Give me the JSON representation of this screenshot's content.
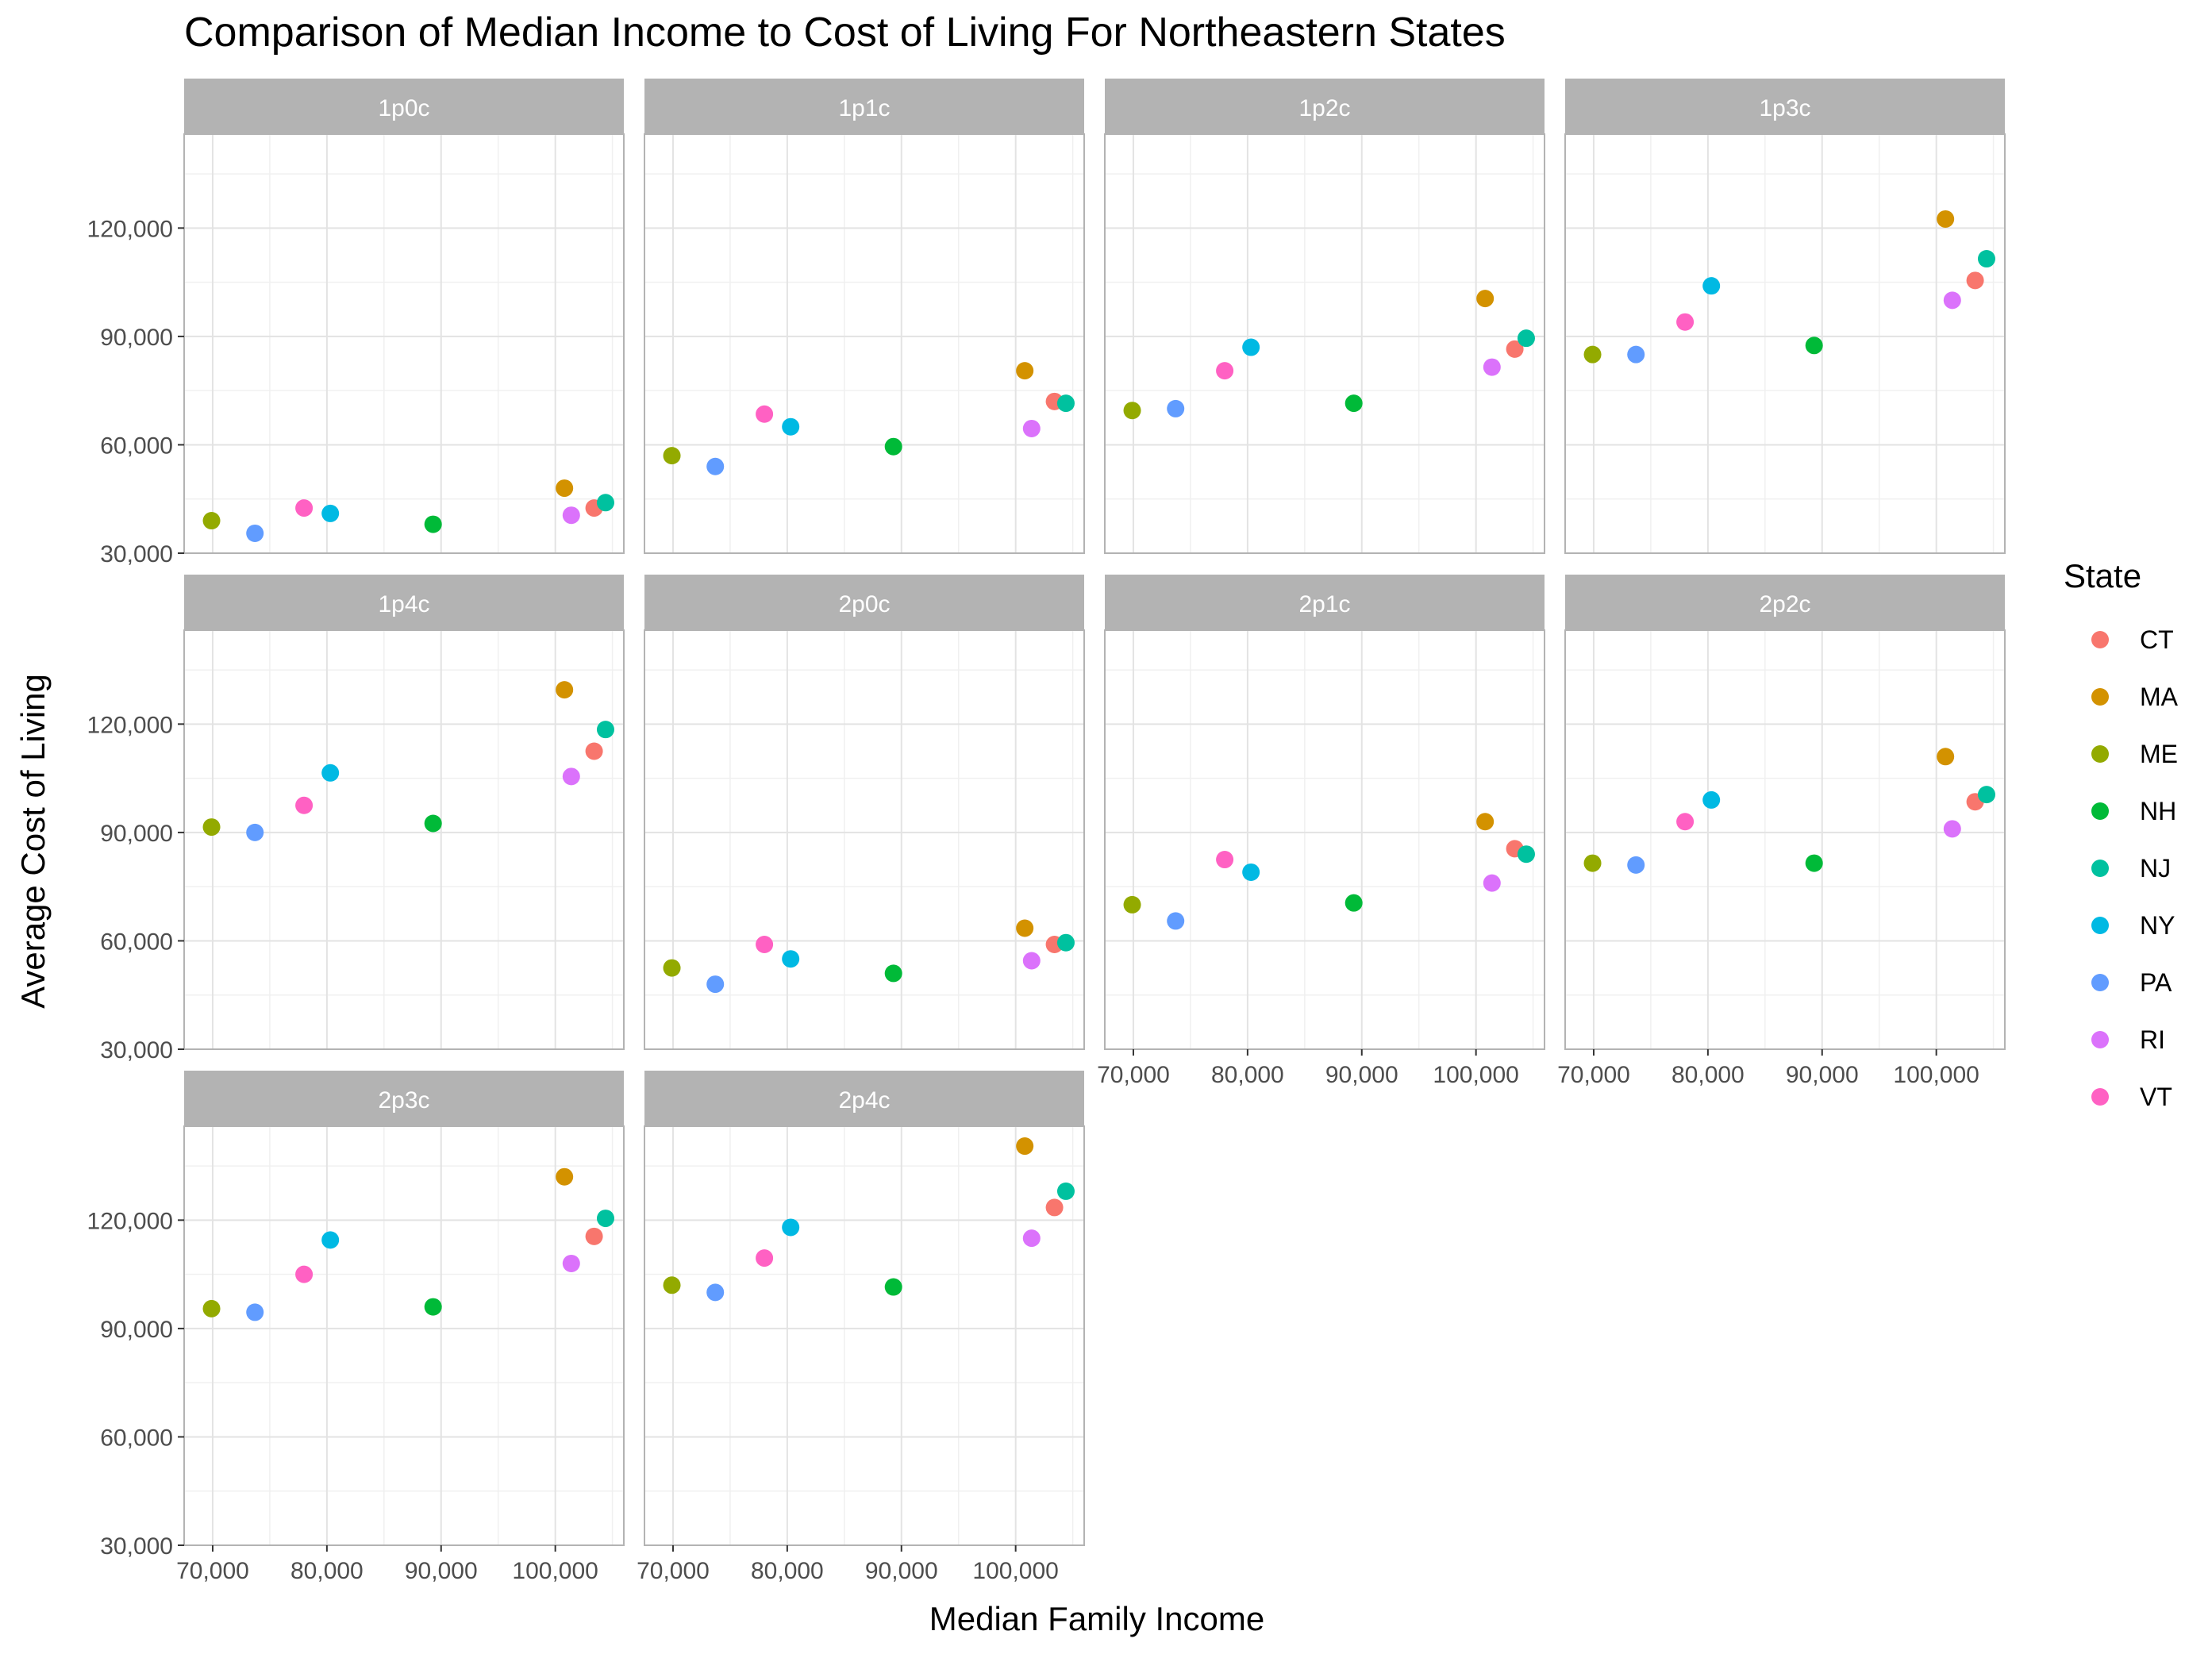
{
  "chart_data": {
    "type": "scatter",
    "title": "Comparison of Median Income to Cost of Living For Northeastern States",
    "xlabel": "Median Family Income",
    "ylabel": "Average Cost of Living",
    "xlim": [
      67500,
      106000
    ],
    "ylim": [
      30000,
      146000
    ],
    "x_ticks": [
      70000,
      80000,
      90000,
      100000
    ],
    "y_ticks": [
      30000,
      60000,
      90000,
      120000
    ],
    "x_tick_labels": [
      "70,000",
      "80,000",
      "90,000",
      "100,000"
    ],
    "y_tick_labels": [
      "30,000",
      "60,000",
      "90,000",
      "120,000"
    ],
    "grid": true,
    "facet_count": 10,
    "facet_columns": 4,
    "legend": {
      "title": "State",
      "placement": "right"
    },
    "states": [
      {
        "name": "CT",
        "color": "#F8766D",
        "income": 103400
      },
      {
        "name": "MA",
        "color": "#D39200",
        "income": 100800
      },
      {
        "name": "ME",
        "color": "#93AA00",
        "income": 69900
      },
      {
        "name": "NH",
        "color": "#00BA38",
        "income": 89300
      },
      {
        "name": "NJ",
        "color": "#00C19F",
        "income": 104400
      },
      {
        "name": "NY",
        "color": "#00B9E3",
        "income": 80300
      },
      {
        "name": "PA",
        "color": "#619CFF",
        "income": 73700
      },
      {
        "name": "RI",
        "color": "#DB72FB",
        "income": 101400
      },
      {
        "name": "VT",
        "color": "#FF61C3",
        "income": 78000
      }
    ],
    "facets": [
      {
        "label": "1p0c",
        "costs": {
          "CT": 42500,
          "MA": 48000,
          "ME": 39000,
          "NH": 38000,
          "NJ": 44000,
          "NY": 41000,
          "PA": 35500,
          "RI": 40500,
          "VT": 42500
        }
      },
      {
        "label": "1p1c",
        "costs": {
          "CT": 72000,
          "MA": 80500,
          "ME": 57000,
          "NH": 59500,
          "NJ": 71500,
          "NY": 65000,
          "PA": 54000,
          "RI": 64500,
          "VT": 68500
        }
      },
      {
        "label": "1p2c",
        "costs": {
          "CT": 86500,
          "MA": 100500,
          "ME": 69500,
          "NH": 71500,
          "NJ": 89500,
          "NY": 87000,
          "PA": 70000,
          "RI": 81500,
          "VT": 80500
        }
      },
      {
        "label": "1p3c",
        "costs": {
          "CT": 105500,
          "MA": 122500,
          "ME": 85000,
          "NH": 87500,
          "NJ": 111500,
          "NY": 104000,
          "PA": 85000,
          "RI": 100000,
          "VT": 94000
        }
      },
      {
        "label": "1p4c",
        "costs": {
          "CT": 112500,
          "MA": 129500,
          "ME": 91500,
          "NH": 92500,
          "NJ": 118500,
          "NY": 106500,
          "PA": 90000,
          "RI": 105500,
          "VT": 97500
        }
      },
      {
        "label": "2p0c",
        "costs": {
          "CT": 59000,
          "MA": 63500,
          "ME": 52500,
          "NH": 51000,
          "NJ": 59500,
          "NY": 55000,
          "PA": 48000,
          "RI": 54500,
          "VT": 59000
        }
      },
      {
        "label": "2p1c",
        "costs": {
          "CT": 85500,
          "MA": 93000,
          "ME": 70000,
          "NH": 70500,
          "NJ": 84000,
          "NY": 79000,
          "PA": 65500,
          "RI": 76000,
          "VT": 82500
        }
      },
      {
        "label": "2p2c",
        "costs": {
          "CT": 98500,
          "MA": 111000,
          "ME": 81500,
          "NH": 81500,
          "NJ": 100500,
          "NY": 99000,
          "PA": 81000,
          "RI": 91000,
          "VT": 93000
        }
      },
      {
        "label": "2p3c",
        "costs": {
          "CT": 115500,
          "MA": 132000,
          "ME": 95500,
          "NH": 96000,
          "NJ": 120500,
          "NY": 114500,
          "PA": 94500,
          "RI": 108000,
          "VT": 105000
        }
      },
      {
        "label": "2p4c",
        "costs": {
          "CT": 123500,
          "MA": 140500,
          "ME": 102000,
          "NH": 101500,
          "NJ": 128000,
          "NY": 118000,
          "PA": 100000,
          "RI": 115000,
          "VT": 109500
        }
      }
    ]
  }
}
